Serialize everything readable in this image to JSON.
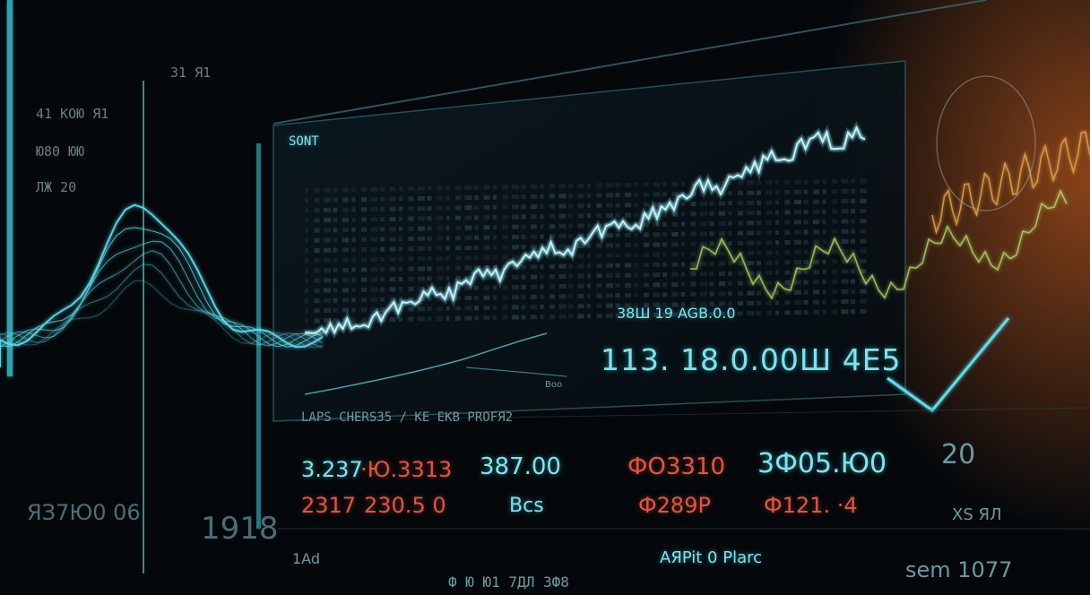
{
  "chart_data": {
    "type": "line",
    "panel_label": "SONT",
    "headline_small": "38Ш 19 AGB.0.0",
    "headline_value": "113. 18.0.00Ш 4E5",
    "small_note": "Boo",
    "row_header": "LAPS CHERS35 / KE EKB PROFЯ2",
    "row1": [
      "3.237",
      "·Ю.3313",
      "387.00",
      "ФO3310",
      "3Ф05.Ю0"
    ],
    "row2": [
      "2317",
      "230.5 0",
      "Bcs",
      "Ф289P",
      "Ф121. ·4"
    ],
    "left_numbers": [
      "31 Я1",
      "41 КОЮ Я1",
      "Ю80 ЮЮ",
      "ЛЖ 20",
      "ЯЗ7Ю0 06"
    ],
    "big_left": "1918",
    "right_top": "20",
    "right_mid": "XS ЯЛ",
    "bottom_center": "AЯPit 0 Plarc",
    "bottom_right": "sem 1077",
    "bottom_left": "1Ad",
    "bottom_strip": "Ф Ю Ю1 7ДЛ 3Ф8",
    "main_series": [
      0.08,
      0.1,
      0.12,
      0.11,
      0.15,
      0.19,
      0.21,
      0.26,
      0.25,
      0.3,
      0.34,
      0.33,
      0.38,
      0.42,
      0.45,
      0.43,
      0.48,
      0.52,
      0.55,
      0.54,
      0.6,
      0.63,
      0.67,
      0.72,
      0.7,
      0.76,
      0.8,
      0.85,
      0.83,
      0.9,
      0.93,
      0.88,
      0.95,
      0.92
    ],
    "colors": {
      "cyan": "#5fdcec",
      "red": "#e2543f",
      "green": "#b9e36a",
      "orange": "#e08a3a"
    }
  }
}
